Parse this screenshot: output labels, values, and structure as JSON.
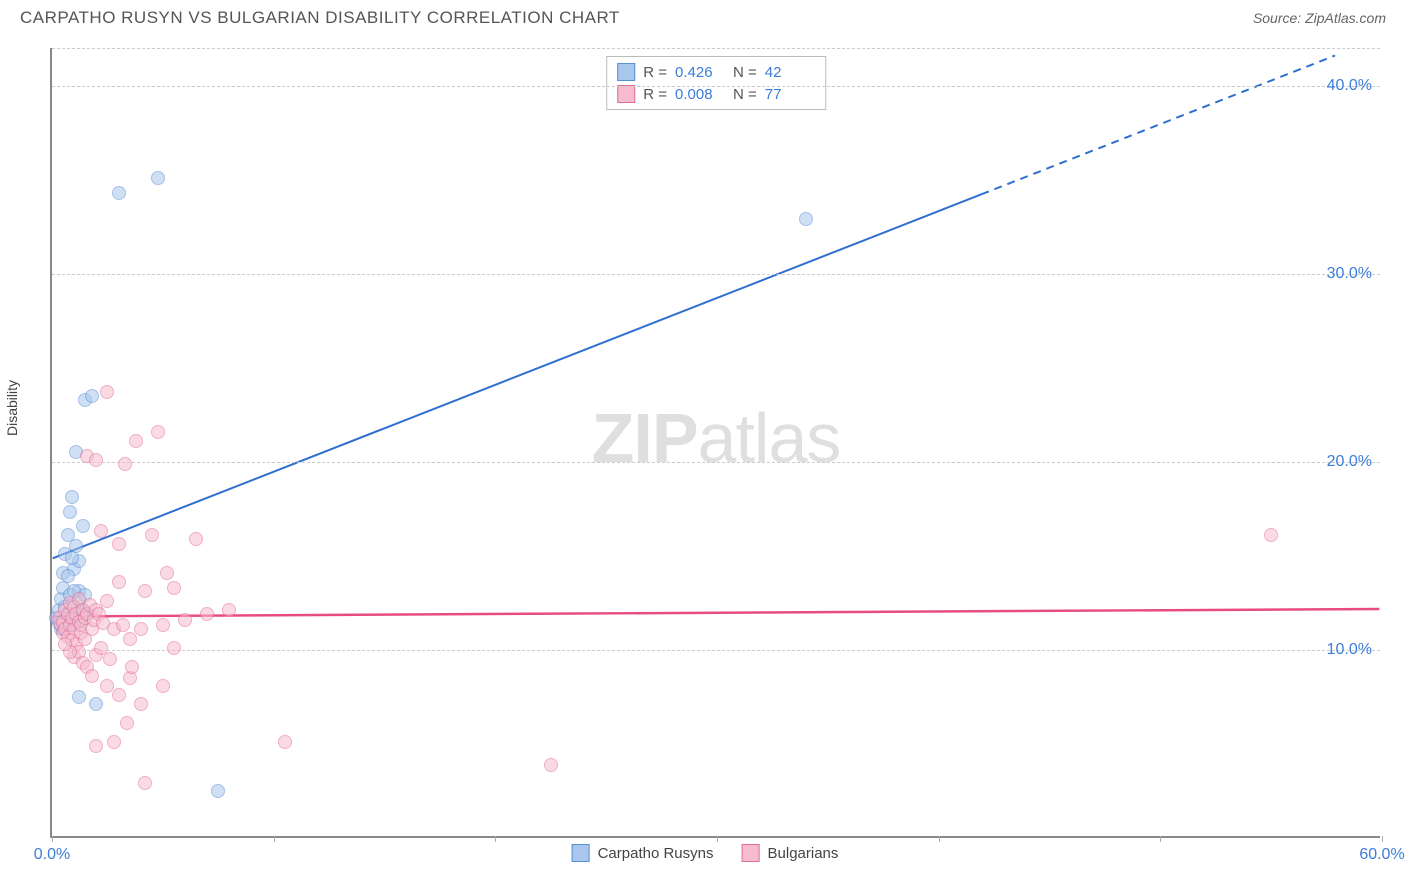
{
  "title": "CARPATHO RUSYN VS BULGARIAN DISABILITY CORRELATION CHART",
  "source": "Source: ZipAtlas.com",
  "ylabel": "Disability",
  "watermark": {
    "zip": "ZIP",
    "atlas": "atlas"
  },
  "chart": {
    "type": "scatter",
    "background_color": "#ffffff",
    "grid_color": "#cccccc",
    "axis_color": "#888888",
    "xlim": [
      0,
      60
    ],
    "ylim": [
      0,
      42
    ],
    "xtick_step": 10,
    "ytick_step": 10,
    "xtick_labels": {
      "0": "0.0%",
      "60": "60.0%"
    },
    "ytick_labels": {
      "10": "10.0%",
      "20": "20.0%",
      "30": "30.0%",
      "40": "40.0%"
    },
    "tick_label_color": "#3b7dd8",
    "tick_label_fontsize": 16,
    "marker_radius": 7,
    "marker_opacity": 0.55,
    "series": [
      {
        "name": "Carpatho Rusyns",
        "fill_color": "#a9c6ec",
        "stroke_color": "#5b8fd6",
        "line_color": "#2f6fd0",
        "line_width": 2,
        "r": "0.426",
        "n": "42",
        "trend": {
          "x1": 0,
          "y1": 14.8,
          "x2": 42,
          "y2": 34.2,
          "dash_from_x": 42,
          "dash_to_x": 58,
          "dash_to_y": 41.6
        },
        "points": [
          [
            0.2,
            11.6
          ],
          [
            0.3,
            12.0
          ],
          [
            0.4,
            11.0
          ],
          [
            0.4,
            12.6
          ],
          [
            0.5,
            13.2
          ],
          [
            0.5,
            14.0
          ],
          [
            0.6,
            12.2
          ],
          [
            0.6,
            15.0
          ],
          [
            0.7,
            11.4
          ],
          [
            0.7,
            16.0
          ],
          [
            0.8,
            12.8
          ],
          [
            0.8,
            17.2
          ],
          [
            0.9,
            18.0
          ],
          [
            1.0,
            11.8
          ],
          [
            1.0,
            14.2
          ],
          [
            1.1,
            15.4
          ],
          [
            1.1,
            20.4
          ],
          [
            1.2,
            13.0
          ],
          [
            1.3,
            11.5
          ],
          [
            1.4,
            16.5
          ],
          [
            1.5,
            23.2
          ],
          [
            1.8,
            23.4
          ],
          [
            1.2,
            12.5
          ],
          [
            1.4,
            12.0
          ],
          [
            1.0,
            11.2
          ],
          [
            0.5,
            11.0
          ],
          [
            0.6,
            11.3
          ],
          [
            0.8,
            11.8
          ],
          [
            0.3,
            11.3
          ],
          [
            0.9,
            12.3
          ],
          [
            1.0,
            13.0
          ],
          [
            1.2,
            14.6
          ],
          [
            1.6,
            11.8
          ],
          [
            2.0,
            7.0
          ],
          [
            1.2,
            7.4
          ],
          [
            3.0,
            34.2
          ],
          [
            4.8,
            35.0
          ],
          [
            7.5,
            2.4
          ],
          [
            34.0,
            32.8
          ],
          [
            1.5,
            12.8
          ],
          [
            0.7,
            13.8
          ],
          [
            0.9,
            14.8
          ]
        ]
      },
      {
        "name": "Bulgarians",
        "fill_color": "#f6bccd",
        "stroke_color": "#e36f97",
        "line_color": "#e84b84",
        "line_width": 2.5,
        "r": "0.008",
        "n": "77",
        "trend": {
          "x1": 0,
          "y1": 11.7,
          "x2": 60,
          "y2": 12.1
        },
        "points": [
          [
            0.3,
            11.6
          ],
          [
            0.4,
            11.2
          ],
          [
            0.5,
            10.8
          ],
          [
            0.5,
            11.4
          ],
          [
            0.6,
            11.0
          ],
          [
            0.6,
            12.0
          ],
          [
            0.7,
            10.6
          ],
          [
            0.7,
            11.8
          ],
          [
            0.8,
            11.2
          ],
          [
            0.8,
            12.4
          ],
          [
            0.9,
            10.4
          ],
          [
            0.9,
            11.6
          ],
          [
            1.0,
            11.0
          ],
          [
            1.0,
            12.2
          ],
          [
            1.1,
            10.2
          ],
          [
            1.1,
            11.8
          ],
          [
            1.2,
            11.4
          ],
          [
            1.2,
            12.6
          ],
          [
            1.3,
            10.8
          ],
          [
            1.3,
            11.2
          ],
          [
            1.4,
            12.0
          ],
          [
            1.5,
            11.6
          ],
          [
            1.5,
            10.5
          ],
          [
            1.6,
            11.8
          ],
          [
            1.7,
            12.3
          ],
          [
            1.8,
            11.0
          ],
          [
            1.9,
            11.5
          ],
          [
            2.0,
            12.0
          ],
          [
            2.0,
            9.6
          ],
          [
            2.1,
            11.8
          ],
          [
            2.2,
            10.0
          ],
          [
            2.3,
            11.3
          ],
          [
            2.5,
            12.5
          ],
          [
            2.6,
            9.4
          ],
          [
            2.8,
            11.0
          ],
          [
            3.0,
            13.5
          ],
          [
            3.0,
            15.5
          ],
          [
            3.2,
            11.2
          ],
          [
            3.3,
            19.8
          ],
          [
            3.5,
            10.5
          ],
          [
            3.5,
            8.4
          ],
          [
            3.6,
            9.0
          ],
          [
            3.8,
            21.0
          ],
          [
            4.0,
            11.0
          ],
          [
            4.2,
            13.0
          ],
          [
            4.5,
            16.0
          ],
          [
            4.8,
            21.5
          ],
          [
            5.0,
            11.2
          ],
          [
            5.2,
            14.0
          ],
          [
            5.5,
            10.0
          ],
          [
            1.6,
            20.2
          ],
          [
            2.0,
            20.0
          ],
          [
            2.2,
            16.2
          ],
          [
            2.5,
            23.6
          ],
          [
            3.0,
            7.5
          ],
          [
            3.4,
            6.0
          ],
          [
            4.0,
            7.0
          ],
          [
            4.2,
            2.8
          ],
          [
            2.8,
            5.0
          ],
          [
            2.0,
            4.8
          ],
          [
            5.0,
            8.0
          ],
          [
            5.5,
            13.2
          ],
          [
            6.0,
            11.5
          ],
          [
            6.5,
            15.8
          ],
          [
            7.0,
            11.8
          ],
          [
            8.0,
            12.0
          ],
          [
            10.5,
            5.0
          ],
          [
            22.5,
            3.8
          ],
          [
            55.0,
            16.0
          ],
          [
            1.0,
            9.5
          ],
          [
            1.2,
            9.8
          ],
          [
            1.4,
            9.2
          ],
          [
            1.6,
            9.0
          ],
          [
            1.8,
            8.5
          ],
          [
            2.5,
            8.0
          ],
          [
            0.8,
            9.8
          ],
          [
            0.6,
            10.2
          ]
        ]
      }
    ]
  },
  "legend_top": {
    "r_label": "R  =",
    "n_label": "N  ="
  },
  "legend_bottom": {
    "items": [
      "Carpatho Rusyns",
      "Bulgarians"
    ]
  }
}
